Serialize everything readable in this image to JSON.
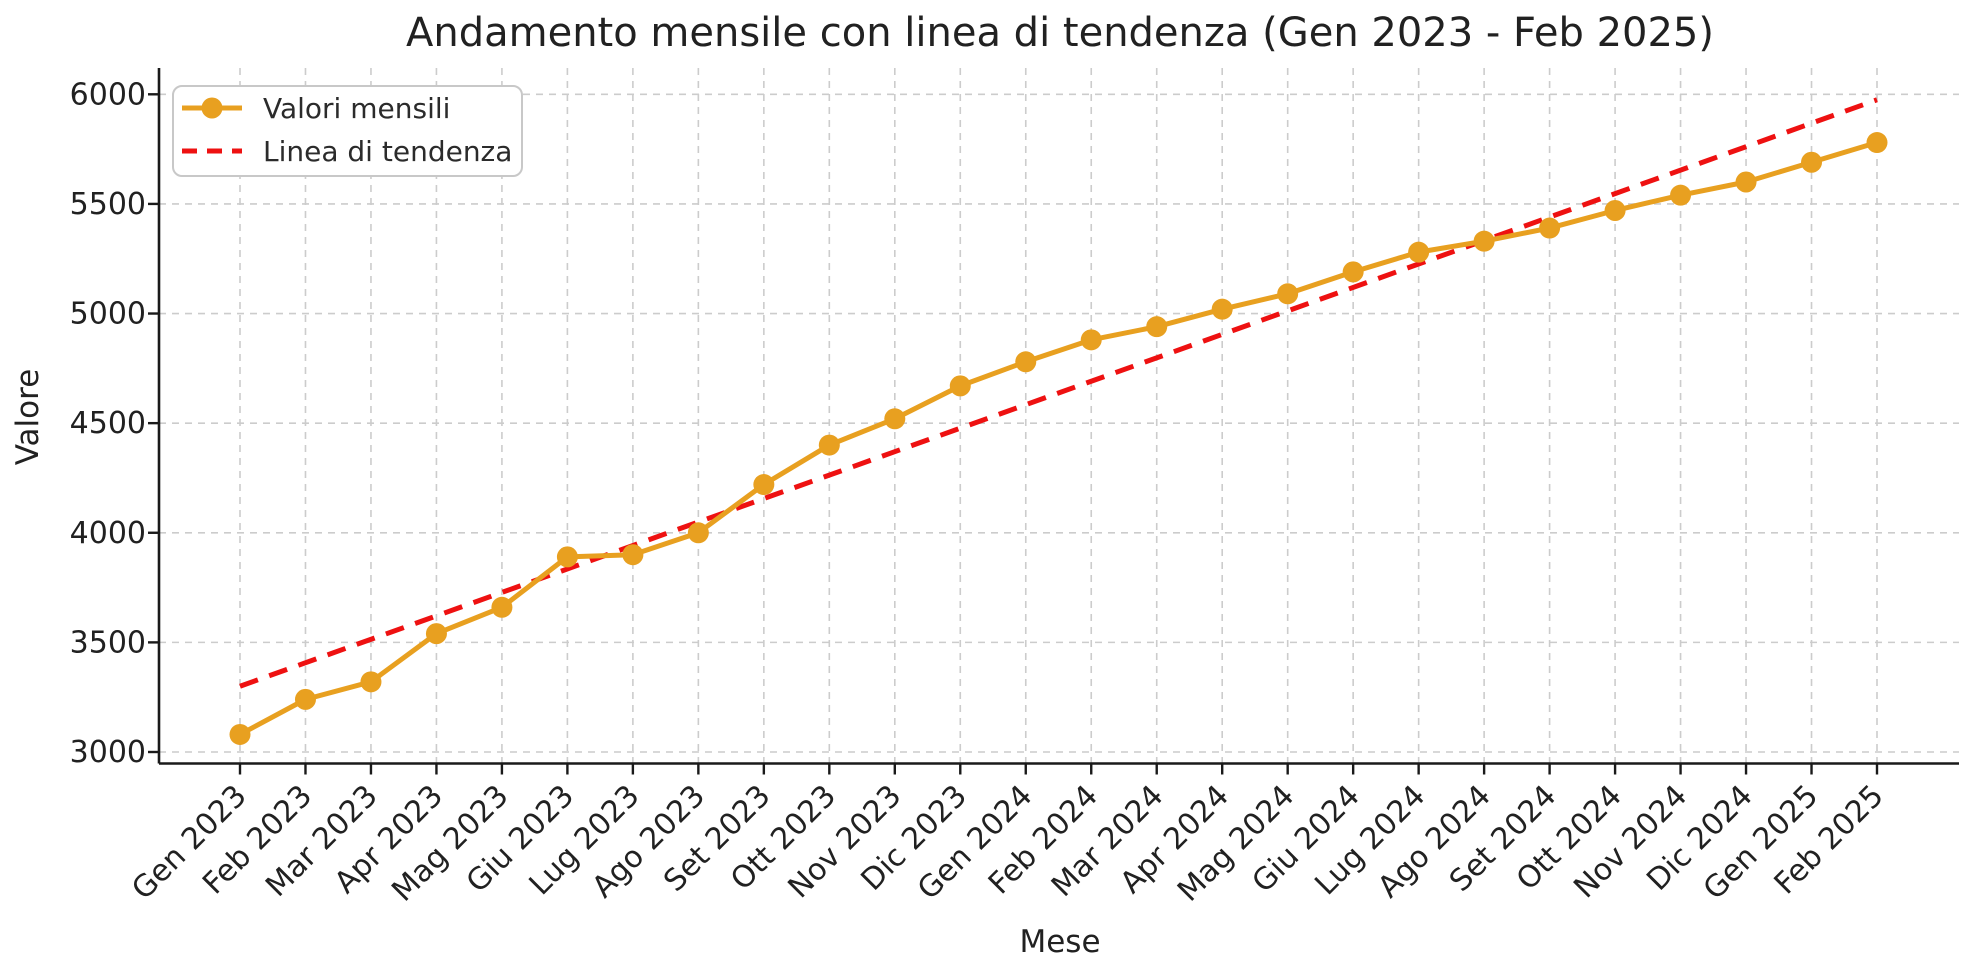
{
  "chart_data": {
    "type": "line",
    "title": "Andamento mensile con linea di tendenza (Gen 2023 - Feb 2025)",
    "xlabel": "Mese",
    "ylabel": "Valore",
    "categories": [
      "Gen 2023",
      "Feb 2023",
      "Mar 2023",
      "Apr 2023",
      "Mag 2023",
      "Giu 2023",
      "Lug 2023",
      "Ago 2023",
      "Set 2023",
      "Ott 2023",
      "Nov 2023",
      "Dic 2023",
      "Gen 2024",
      "Feb 2024",
      "Mar 2024",
      "Apr 2024",
      "Mag 2024",
      "Giu 2024",
      "Lug 2024",
      "Ago 2024",
      "Set 2024",
      "Ott 2024",
      "Nov 2024",
      "Dic 2024",
      "Gen 2025",
      "Feb 2025"
    ],
    "series": [
      {
        "name": "Valori mensili",
        "color": "#e8a020",
        "marker": "circle",
        "values": [
          3080,
          3240,
          3320,
          3540,
          3660,
          3890,
          3900,
          4000,
          4220,
          4400,
          4520,
          4670,
          4780,
          4880,
          4940,
          5020,
          5090,
          5190,
          5280,
          5330,
          5390,
          5470,
          5540,
          5600,
          5690,
          5780
        ]
      }
    ],
    "trend": {
      "name": "Linea di tendenza",
      "color": "#ee1111",
      "style": "dashed",
      "start_value": 3300,
      "end_value": 5975
    },
    "y_ticks": [
      3000,
      3500,
      4000,
      4500,
      5000,
      5500,
      6000
    ],
    "ylim": [
      2930,
      6120
    ],
    "grid": true,
    "x_tick_rotation": -45,
    "legend_position": "upper left"
  }
}
